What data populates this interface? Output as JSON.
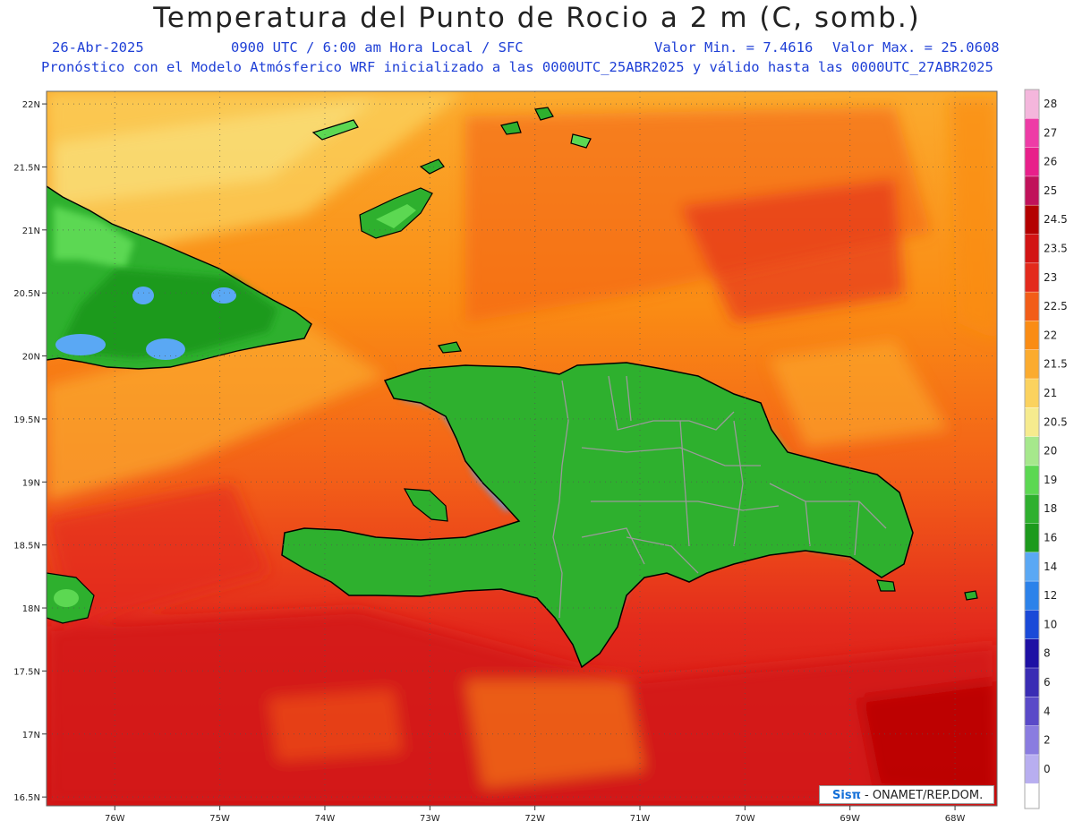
{
  "header": {
    "title": "Temperatura del Punto de Rocio a 2 m (C, somb.)",
    "date": "26-Abr-2025",
    "time_info": "0900 UTC / 6:00 am Hora Local / SFC",
    "min_value": "Valor Min. = 7.4616",
    "max_value": "Valor Max. = 25.0608",
    "model_info": "Pronóstico con el Modelo Atmósferico WRF inicializado a las 0000UTC_25ABR2025 y válido hasta las  0000UTC_27ABR2025"
  },
  "map": {
    "lat_labels": [
      "22N",
      "21.5N",
      "21N",
      "20.5N",
      "20N",
      "19.5N",
      "19N",
      "18.5N",
      "18N",
      "17.5N",
      "17N",
      "16.5N"
    ],
    "lat_values": [
      22,
      21.5,
      21,
      20.5,
      20,
      19.5,
      19,
      18.5,
      18,
      17.5,
      17,
      16.5
    ],
    "lon_labels": [
      "76W",
      "75W",
      "74W",
      "73W",
      "72W",
      "71W",
      "70W",
      "69W",
      "68W"
    ],
    "lon_values": [
      -76,
      -75,
      -74,
      -73,
      -72,
      -71,
      -70,
      -69,
      -68
    ],
    "lat_range": [
      16.43,
      22.1
    ],
    "lon_range": [
      -76.65,
      -67.6
    ]
  },
  "colorbar": {
    "levels": [
      "28",
      "27",
      "26",
      "25",
      "24.5",
      "23.5",
      "23",
      "22.5",
      "22",
      "21.5",
      "21",
      "20.5",
      "20",
      "19",
      "18",
      "16",
      "14",
      "12",
      "10",
      "8",
      "6",
      "4",
      "2",
      "0"
    ],
    "colors": [
      "#f4b6dc",
      "#ee3ca6",
      "#e8208a",
      "#c0125a",
      "#b40000",
      "#d21414",
      "#e32a1c",
      "#f25d18",
      "#fa8c14",
      "#fbab2e",
      "#fbd25e",
      "#f6eb8e",
      "#a6e88c",
      "#5cd852",
      "#2eb02e",
      "#1c9a1c",
      "#5aa8f4",
      "#2c82ea",
      "#1a4ad8",
      "#1e10a4",
      "#3a2cb4",
      "#5a4ac8",
      "#8a7ce0",
      "#b8aef0"
    ],
    "bottom_color": "#ffffff"
  },
  "logo": {
    "sis": "Sis",
    "pi": "π",
    "org": " - ONAMET/REP.DOM."
  }
}
